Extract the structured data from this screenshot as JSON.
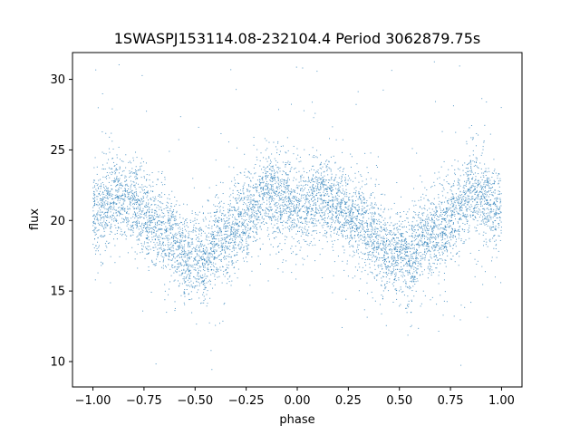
{
  "chart_data": {
    "type": "scatter",
    "title": "1SWASPJ153114.08-232104.4 Period 3062879.75s",
    "xlabel": "phase",
    "ylabel": "flux",
    "xlim": [
      -1.1,
      1.1
    ],
    "ylim": [
      8.2,
      31.9
    ],
    "xticks": [
      -1.0,
      -0.75,
      -0.5,
      -0.25,
      0.0,
      0.25,
      0.5,
      0.75,
      1.0
    ],
    "xtick_labels": [
      "−1.00",
      "−0.75",
      "−0.50",
      "−0.25",
      "0.00",
      "0.25",
      "0.50",
      "0.75",
      "1.00"
    ],
    "yticks": [
      10,
      15,
      20,
      25,
      30
    ],
    "ytick_labels": [
      "10",
      "15",
      "20",
      "25",
      "30"
    ],
    "grid": false,
    "marker_color": "#1f77b4",
    "trend_profile": {
      "x": [
        0.0,
        0.05,
        0.1,
        0.15,
        0.2,
        0.25,
        0.3,
        0.35,
        0.4,
        0.45,
        0.5,
        0.55,
        0.6,
        0.65,
        0.7,
        0.75,
        0.8,
        0.85,
        0.9,
        0.95,
        1.0
      ],
      "flux": [
        20.8,
        20.9,
        21.8,
        21.6,
        21.2,
        20.3,
        19.8,
        19.2,
        18.6,
        17.3,
        17.8,
        17.2,
        18.6,
        18.8,
        19.4,
        20.0,
        20.8,
        22.5,
        21.6,
        21.3,
        20.8
      ]
    },
    "n_points": 7000
  }
}
